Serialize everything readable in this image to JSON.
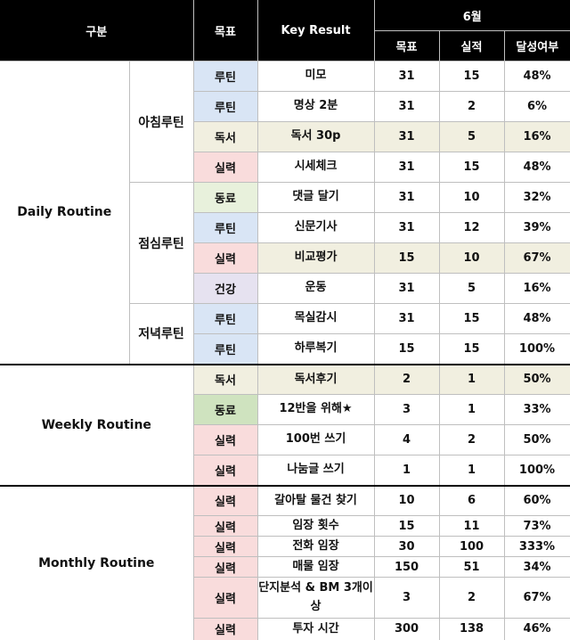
{
  "header": {
    "category": "구분",
    "goal_type": "목표",
    "key_result": "Key Result",
    "month": "6월",
    "target": "목표",
    "actual": "실적",
    "achievement": "달성여부"
  },
  "sections": [
    {
      "name": "Daily Routine",
      "groups": [
        {
          "name": "아침루틴",
          "rows": [
            {
              "type": "루틴",
              "color": "#d9e5f5",
              "kr": "미모",
              "target": "31",
              "actual": "15",
              "rate": "48%"
            },
            {
              "type": "루틴",
              "color": "#d9e5f5",
              "kr": "명상 2분",
              "target": "31",
              "actual": "2",
              "rate": "6%"
            },
            {
              "type": "독서",
              "color": "#f1efe0",
              "kr": "독서 30p",
              "target": "31",
              "actual": "5",
              "rate": "16%"
            },
            {
              "type": "실력",
              "color": "#f9dcdc",
              "kr": "시세체크",
              "target": "31",
              "actual": "15",
              "rate": "48%"
            }
          ]
        },
        {
          "name": "점심루틴",
          "rows": [
            {
              "type": "동료",
              "color": "#e8f1dc",
              "kr": "댓글 달기",
              "target": "31",
              "actual": "10",
              "rate": "32%"
            },
            {
              "type": "루틴",
              "color": "#d9e5f5",
              "kr": "신문기사",
              "target": "31",
              "actual": "12",
              "rate": "39%"
            },
            {
              "type": "실력",
              "color": "#f9dcdc",
              "kr": "비교평가",
              "target": "15",
              "actual": "10",
              "rate": "67%"
            },
            {
              "type": "건강",
              "color": "#e6e2f0",
              "kr": "운동",
              "target": "31",
              "actual": "5",
              "rate": "16%"
            }
          ]
        },
        {
          "name": "저녁루틴",
          "rows": [
            {
              "type": "루틴",
              "color": "#d9e5f5",
              "kr": "목실감시",
              "target": "31",
              "actual": "15",
              "rate": "48%"
            },
            {
              "type": "루틴",
              "color": "#d9e5f5",
              "kr": "하루복기",
              "target": "15",
              "actual": "15",
              "rate": "100%"
            }
          ]
        }
      ]
    },
    {
      "name": "Weekly Routine",
      "groups": [
        {
          "name": "",
          "rows": [
            {
              "type": "독서",
              "color": "#f1efe0",
              "kr": "독서후기",
              "target": "2",
              "actual": "1",
              "rate": "50%"
            },
            {
              "type": "동료",
              "color": "#cfe3bf",
              "kr": "12반을 위해★",
              "target": "3",
              "actual": "1",
              "rate": "33%"
            },
            {
              "type": "실력",
              "color": "#f9dcdc",
              "kr": "100번 쓰기",
              "target": "4",
              "actual": "2",
              "rate": "50%"
            },
            {
              "type": "실력",
              "color": "#f9dcdc",
              "kr": "나눔글 쓰기",
              "target": "1",
              "actual": "1",
              "rate": "100%"
            }
          ]
        }
      ]
    },
    {
      "name": "Monthly Routine",
      "groups": [
        {
          "name": "",
          "rows": [
            {
              "type": "실력",
              "color": "#f9dcdc",
              "kr": "갈아탈 물건 찾기",
              "target": "10",
              "actual": "6",
              "rate": "60%"
            },
            {
              "type": "실력",
              "color": "#f9dcdc",
              "kr": "임장 횟수",
              "target": "15",
              "actual": "11",
              "rate": "73%"
            },
            {
              "type": "실력",
              "color": "#f9dcdc",
              "kr": "전화 임장",
              "target": "30",
              "actual": "100",
              "rate": "333%"
            },
            {
              "type": "실력",
              "color": "#f9dcdc",
              "kr": "매물 임장",
              "target": "150",
              "actual": "51",
              "rate": "34%"
            },
            {
              "type": "실력",
              "color": "#f9dcdc",
              "kr": "단지분석 & BM 3개이상",
              "target": "3",
              "actual": "2",
              "rate": "67%"
            },
            {
              "type": "실력",
              "color": "#f9dcdc",
              "kr": "투자 시간",
              "target": "300",
              "actual": "138",
              "rate": "46%"
            }
          ]
        }
      ]
    }
  ]
}
